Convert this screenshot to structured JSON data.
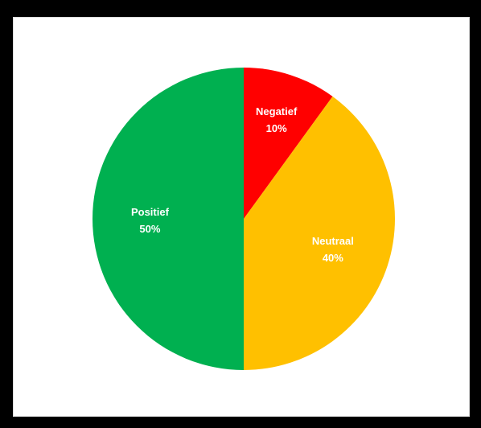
{
  "chart_data": {
    "type": "pie",
    "title": "",
    "start_angle_deg": 0,
    "direction": "clockwise",
    "slices": [
      {
        "label": "Negatief",
        "value": 10,
        "value_label": "10%",
        "color": "#ff0000"
      },
      {
        "label": "Neutraal",
        "value": 40,
        "value_label": "40%",
        "color": "#ffc000"
      },
      {
        "label": "Positief",
        "value": 50,
        "value_label": "50%",
        "color": "#00b050"
      }
    ],
    "legend": "none",
    "data_labels": "inside"
  }
}
